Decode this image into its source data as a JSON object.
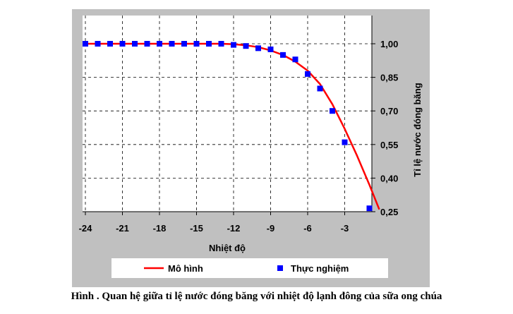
{
  "chart_data": {
    "type": "line",
    "xlabel": "Nhiệt độ",
    "ylabel": "Tỉ lệ nước đóng băng",
    "xlim": [
      -24,
      0
    ],
    "ylim": [
      0.25,
      1.0
    ],
    "x_ticks": [
      -24,
      -21,
      -18,
      -15,
      -12,
      -9,
      -6,
      -3
    ],
    "x_tick_labels": [
      "-24",
      "-21",
      "-18",
      "-15",
      "-12",
      "-9",
      "-6",
      "-3"
    ],
    "y_ticks": [
      1.0,
      0.85,
      0.7,
      0.55,
      0.4,
      0.25
    ],
    "y_tick_labels": [
      "1,00",
      "0,85",
      "0,70",
      "0,55",
      "0,40",
      "0,25"
    ],
    "grid": true,
    "y_axis_side": "right",
    "legend_position": "bottom",
    "series": [
      {
        "name": "Mô hình",
        "kind": "line",
        "color": "#ff0000",
        "x": [
          -24,
          -22,
          -20,
          -18,
          -16,
          -14,
          -13,
          -12,
          -11,
          -10,
          -9,
          -8,
          -7,
          -6,
          -5,
          -4,
          -3,
          -2,
          -1,
          -0.2
        ],
        "y": [
          1.0,
          1.0,
          1.0,
          1.0,
          1.0,
          1.0,
          1.0,
          0.998,
          0.993,
          0.985,
          0.97,
          0.95,
          0.92,
          0.88,
          0.82,
          0.73,
          0.62,
          0.5,
          0.37,
          0.26
        ]
      },
      {
        "name": "Thực nghiệm",
        "kind": "scatter",
        "color": "#0000ff",
        "x": [
          -24,
          -23,
          -22,
          -21,
          -20,
          -19,
          -18,
          -17,
          -16,
          -15,
          -14,
          -13,
          -12,
          -11,
          -10,
          -9,
          -8,
          -7,
          -6,
          -5,
          -4,
          -3,
          -1
        ],
        "y": [
          1.0,
          1.0,
          1.0,
          1.0,
          1.0,
          1.0,
          1.0,
          1.0,
          1.0,
          1.0,
          1.0,
          1.0,
          0.995,
          0.99,
          0.98,
          0.975,
          0.95,
          0.93,
          0.865,
          0.8,
          0.7,
          0.56,
          0.265
        ]
      }
    ]
  },
  "caption": "Hình . Quan hệ giữa tỉ lệ nước đóng băng với nhiệt độ lạnh đông của sữa ong chúa"
}
